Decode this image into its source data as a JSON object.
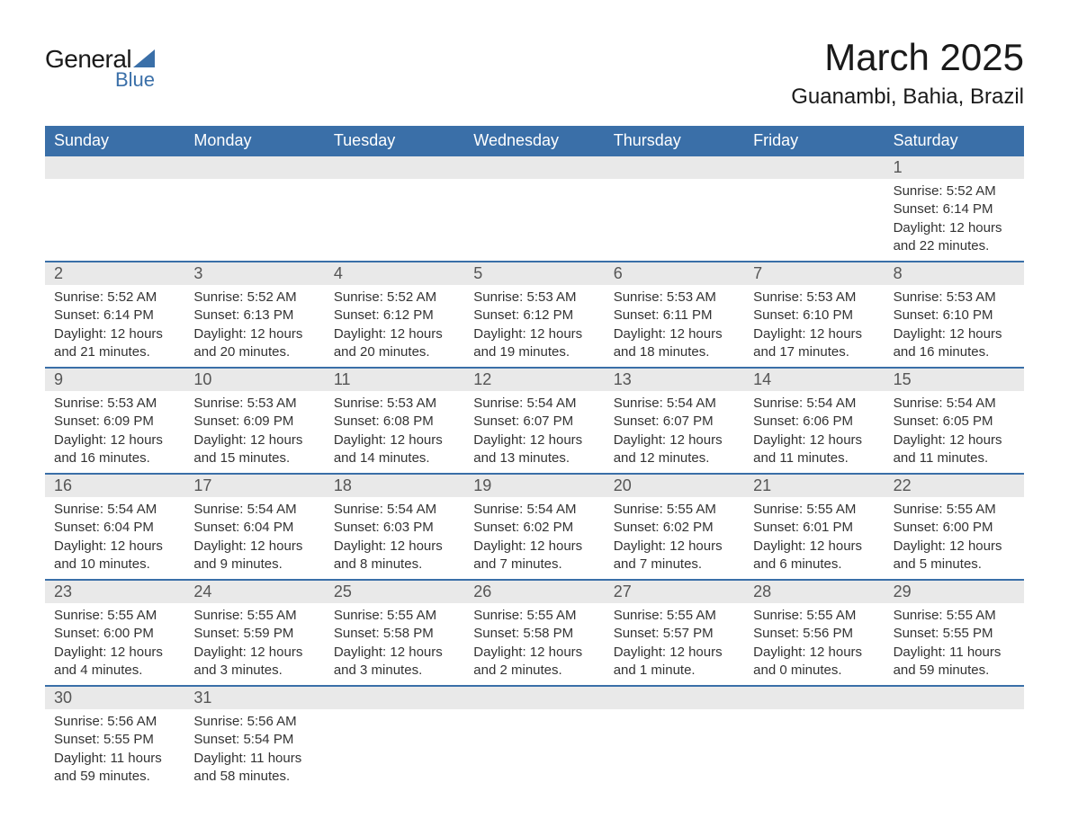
{
  "logo": {
    "text_general": "General",
    "text_blue": "Blue",
    "sail_color": "#3a6fa8"
  },
  "title": "March 2025",
  "location": "Guanambi, Bahia, Brazil",
  "colors": {
    "header_bg": "#3a6fa8",
    "header_text": "#ffffff",
    "daynum_bg": "#e9e9e9",
    "daynum_text": "#555555",
    "body_text": "#333333",
    "row_divider": "#3a6fa8"
  },
  "day_headers": [
    "Sunday",
    "Monday",
    "Tuesday",
    "Wednesday",
    "Thursday",
    "Friday",
    "Saturday"
  ],
  "weeks": [
    [
      {
        "blank": true
      },
      {
        "blank": true
      },
      {
        "blank": true
      },
      {
        "blank": true
      },
      {
        "blank": true
      },
      {
        "blank": true
      },
      {
        "num": "1",
        "sunrise": "Sunrise: 5:52 AM",
        "sunset": "Sunset: 6:14 PM",
        "daylight1": "Daylight: 12 hours",
        "daylight2": "and 22 minutes."
      }
    ],
    [
      {
        "num": "2",
        "sunrise": "Sunrise: 5:52 AM",
        "sunset": "Sunset: 6:14 PM",
        "daylight1": "Daylight: 12 hours",
        "daylight2": "and 21 minutes."
      },
      {
        "num": "3",
        "sunrise": "Sunrise: 5:52 AM",
        "sunset": "Sunset: 6:13 PM",
        "daylight1": "Daylight: 12 hours",
        "daylight2": "and 20 minutes."
      },
      {
        "num": "4",
        "sunrise": "Sunrise: 5:52 AM",
        "sunset": "Sunset: 6:12 PM",
        "daylight1": "Daylight: 12 hours",
        "daylight2": "and 20 minutes."
      },
      {
        "num": "5",
        "sunrise": "Sunrise: 5:53 AM",
        "sunset": "Sunset: 6:12 PM",
        "daylight1": "Daylight: 12 hours",
        "daylight2": "and 19 minutes."
      },
      {
        "num": "6",
        "sunrise": "Sunrise: 5:53 AM",
        "sunset": "Sunset: 6:11 PM",
        "daylight1": "Daylight: 12 hours",
        "daylight2": "and 18 minutes."
      },
      {
        "num": "7",
        "sunrise": "Sunrise: 5:53 AM",
        "sunset": "Sunset: 6:10 PM",
        "daylight1": "Daylight: 12 hours",
        "daylight2": "and 17 minutes."
      },
      {
        "num": "8",
        "sunrise": "Sunrise: 5:53 AM",
        "sunset": "Sunset: 6:10 PM",
        "daylight1": "Daylight: 12 hours",
        "daylight2": "and 16 minutes."
      }
    ],
    [
      {
        "num": "9",
        "sunrise": "Sunrise: 5:53 AM",
        "sunset": "Sunset: 6:09 PM",
        "daylight1": "Daylight: 12 hours",
        "daylight2": "and 16 minutes."
      },
      {
        "num": "10",
        "sunrise": "Sunrise: 5:53 AM",
        "sunset": "Sunset: 6:09 PM",
        "daylight1": "Daylight: 12 hours",
        "daylight2": "and 15 minutes."
      },
      {
        "num": "11",
        "sunrise": "Sunrise: 5:53 AM",
        "sunset": "Sunset: 6:08 PM",
        "daylight1": "Daylight: 12 hours",
        "daylight2": "and 14 minutes."
      },
      {
        "num": "12",
        "sunrise": "Sunrise: 5:54 AM",
        "sunset": "Sunset: 6:07 PM",
        "daylight1": "Daylight: 12 hours",
        "daylight2": "and 13 minutes."
      },
      {
        "num": "13",
        "sunrise": "Sunrise: 5:54 AM",
        "sunset": "Sunset: 6:07 PM",
        "daylight1": "Daylight: 12 hours",
        "daylight2": "and 12 minutes."
      },
      {
        "num": "14",
        "sunrise": "Sunrise: 5:54 AM",
        "sunset": "Sunset: 6:06 PM",
        "daylight1": "Daylight: 12 hours",
        "daylight2": "and 11 minutes."
      },
      {
        "num": "15",
        "sunrise": "Sunrise: 5:54 AM",
        "sunset": "Sunset: 6:05 PM",
        "daylight1": "Daylight: 12 hours",
        "daylight2": "and 11 minutes."
      }
    ],
    [
      {
        "num": "16",
        "sunrise": "Sunrise: 5:54 AM",
        "sunset": "Sunset: 6:04 PM",
        "daylight1": "Daylight: 12 hours",
        "daylight2": "and 10 minutes."
      },
      {
        "num": "17",
        "sunrise": "Sunrise: 5:54 AM",
        "sunset": "Sunset: 6:04 PM",
        "daylight1": "Daylight: 12 hours",
        "daylight2": "and 9 minutes."
      },
      {
        "num": "18",
        "sunrise": "Sunrise: 5:54 AM",
        "sunset": "Sunset: 6:03 PM",
        "daylight1": "Daylight: 12 hours",
        "daylight2": "and 8 minutes."
      },
      {
        "num": "19",
        "sunrise": "Sunrise: 5:54 AM",
        "sunset": "Sunset: 6:02 PM",
        "daylight1": "Daylight: 12 hours",
        "daylight2": "and 7 minutes."
      },
      {
        "num": "20",
        "sunrise": "Sunrise: 5:55 AM",
        "sunset": "Sunset: 6:02 PM",
        "daylight1": "Daylight: 12 hours",
        "daylight2": "and 7 minutes."
      },
      {
        "num": "21",
        "sunrise": "Sunrise: 5:55 AM",
        "sunset": "Sunset: 6:01 PM",
        "daylight1": "Daylight: 12 hours",
        "daylight2": "and 6 minutes."
      },
      {
        "num": "22",
        "sunrise": "Sunrise: 5:55 AM",
        "sunset": "Sunset: 6:00 PM",
        "daylight1": "Daylight: 12 hours",
        "daylight2": "and 5 minutes."
      }
    ],
    [
      {
        "num": "23",
        "sunrise": "Sunrise: 5:55 AM",
        "sunset": "Sunset: 6:00 PM",
        "daylight1": "Daylight: 12 hours",
        "daylight2": "and 4 minutes."
      },
      {
        "num": "24",
        "sunrise": "Sunrise: 5:55 AM",
        "sunset": "Sunset: 5:59 PM",
        "daylight1": "Daylight: 12 hours",
        "daylight2": "and 3 minutes."
      },
      {
        "num": "25",
        "sunrise": "Sunrise: 5:55 AM",
        "sunset": "Sunset: 5:58 PM",
        "daylight1": "Daylight: 12 hours",
        "daylight2": "and 3 minutes."
      },
      {
        "num": "26",
        "sunrise": "Sunrise: 5:55 AM",
        "sunset": "Sunset: 5:58 PM",
        "daylight1": "Daylight: 12 hours",
        "daylight2": "and 2 minutes."
      },
      {
        "num": "27",
        "sunrise": "Sunrise: 5:55 AM",
        "sunset": "Sunset: 5:57 PM",
        "daylight1": "Daylight: 12 hours",
        "daylight2": "and 1 minute."
      },
      {
        "num": "28",
        "sunrise": "Sunrise: 5:55 AM",
        "sunset": "Sunset: 5:56 PM",
        "daylight1": "Daylight: 12 hours",
        "daylight2": "and 0 minutes."
      },
      {
        "num": "29",
        "sunrise": "Sunrise: 5:55 AM",
        "sunset": "Sunset: 5:55 PM",
        "daylight1": "Daylight: 11 hours",
        "daylight2": "and 59 minutes."
      }
    ],
    [
      {
        "num": "30",
        "sunrise": "Sunrise: 5:56 AM",
        "sunset": "Sunset: 5:55 PM",
        "daylight1": "Daylight: 11 hours",
        "daylight2": "and 59 minutes."
      },
      {
        "num": "31",
        "sunrise": "Sunrise: 5:56 AM",
        "sunset": "Sunset: 5:54 PM",
        "daylight1": "Daylight: 11 hours",
        "daylight2": "and 58 minutes."
      },
      {
        "blank": true
      },
      {
        "blank": true
      },
      {
        "blank": true
      },
      {
        "blank": true
      },
      {
        "blank": true
      }
    ]
  ]
}
